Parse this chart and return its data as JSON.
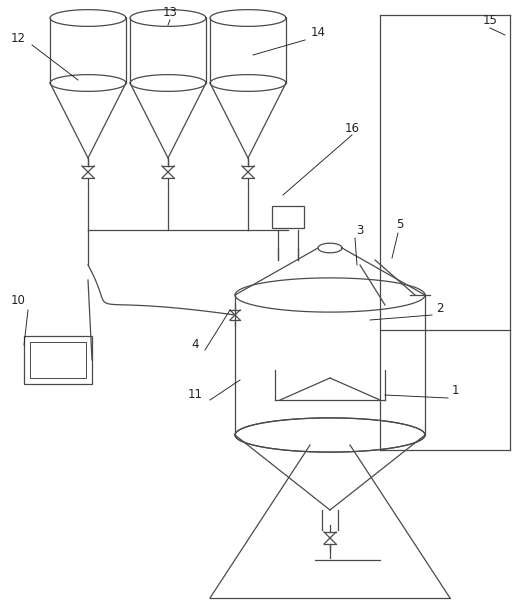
{
  "bg_color": "#ffffff",
  "line_color": "#4a4a4a",
  "label_color": "#222222",
  "figsize": [
    5.18,
    6.02
  ],
  "dpi": 100
}
